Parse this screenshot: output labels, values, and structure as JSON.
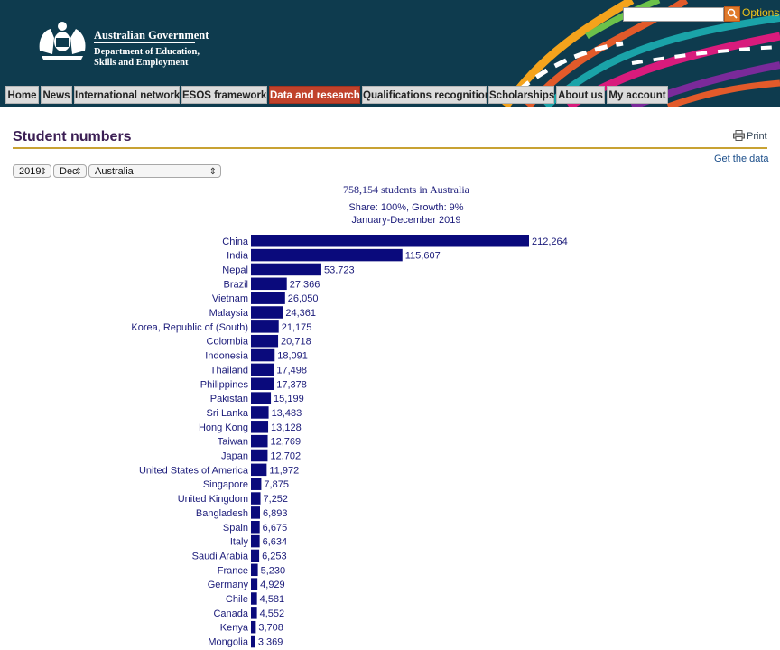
{
  "header": {
    "gov_name": "Australian Government",
    "dept_line1": "Department of Education,",
    "dept_line2": "Skills and Employment",
    "options_label": "Options",
    "search_placeholder": ""
  },
  "nav": {
    "tabs": [
      {
        "label": "Home",
        "active": false
      },
      {
        "label": "News",
        "active": false
      },
      {
        "label": "International network",
        "active": false
      },
      {
        "label": "ESOS framework",
        "active": false
      },
      {
        "label": "Data and research",
        "active": true
      },
      {
        "label": "Qualifications recognition",
        "active": false
      },
      {
        "label": "Scholarships",
        "active": false
      },
      {
        "label": "About us",
        "active": false
      },
      {
        "label": "My account",
        "active": false
      }
    ]
  },
  "page": {
    "title": "Student numbers",
    "print_label": "Print",
    "get_data_label": "Get the data"
  },
  "filters": {
    "year": "2019",
    "month": "Dec",
    "country": "Australia"
  },
  "colors": {
    "header_bg": "#0e3b4e",
    "nav_active": "#c0422b",
    "title_color": "#3b1e54",
    "rule_color": "#c8a233",
    "bar_color": "#0a0a7c"
  },
  "chart_data": {
    "type": "bar",
    "orientation": "horizontal",
    "title": "758,154 students in Australia",
    "subtitle_line1": "Share: 100%, Growth: 9%",
    "subtitle_line2": "January-December 2019",
    "categories": [
      "China",
      "India",
      "Nepal",
      "Brazil",
      "Vietnam",
      "Malaysia",
      "Korea, Republic of (South)",
      "Colombia",
      "Indonesia",
      "Thailand",
      "Philippines",
      "Pakistan",
      "Sri Lanka",
      "Hong Kong",
      "Taiwan",
      "Japan",
      "United States of America",
      "Singapore",
      "United Kingdom",
      "Bangladesh",
      "Spain",
      "Italy",
      "Saudi Arabia",
      "France",
      "Germany",
      "Chile",
      "Canada",
      "Kenya",
      "Mongolia"
    ],
    "values": [
      212264,
      115607,
      53723,
      27366,
      26050,
      24361,
      21175,
      20718,
      18091,
      17498,
      17378,
      15199,
      13483,
      13128,
      12769,
      12702,
      11972,
      7875,
      7252,
      6893,
      6675,
      6634,
      6253,
      5230,
      4929,
      4581,
      4552,
      3708,
      3369
    ],
    "value_labels": [
      "212,264",
      "115,607",
      "53,723",
      "27,366",
      "26,050",
      "24,361",
      "21,175",
      "20,718",
      "18,091",
      "17,498",
      "17,378",
      "15,199",
      "13,483",
      "13,128",
      "12,769",
      "12,702",
      "11,972",
      "7,875",
      "7,252",
      "6,893",
      "6,675",
      "6,634",
      "6,253",
      "5,230",
      "4,929",
      "4,581",
      "4,552",
      "3,708",
      "3,369"
    ]
  }
}
